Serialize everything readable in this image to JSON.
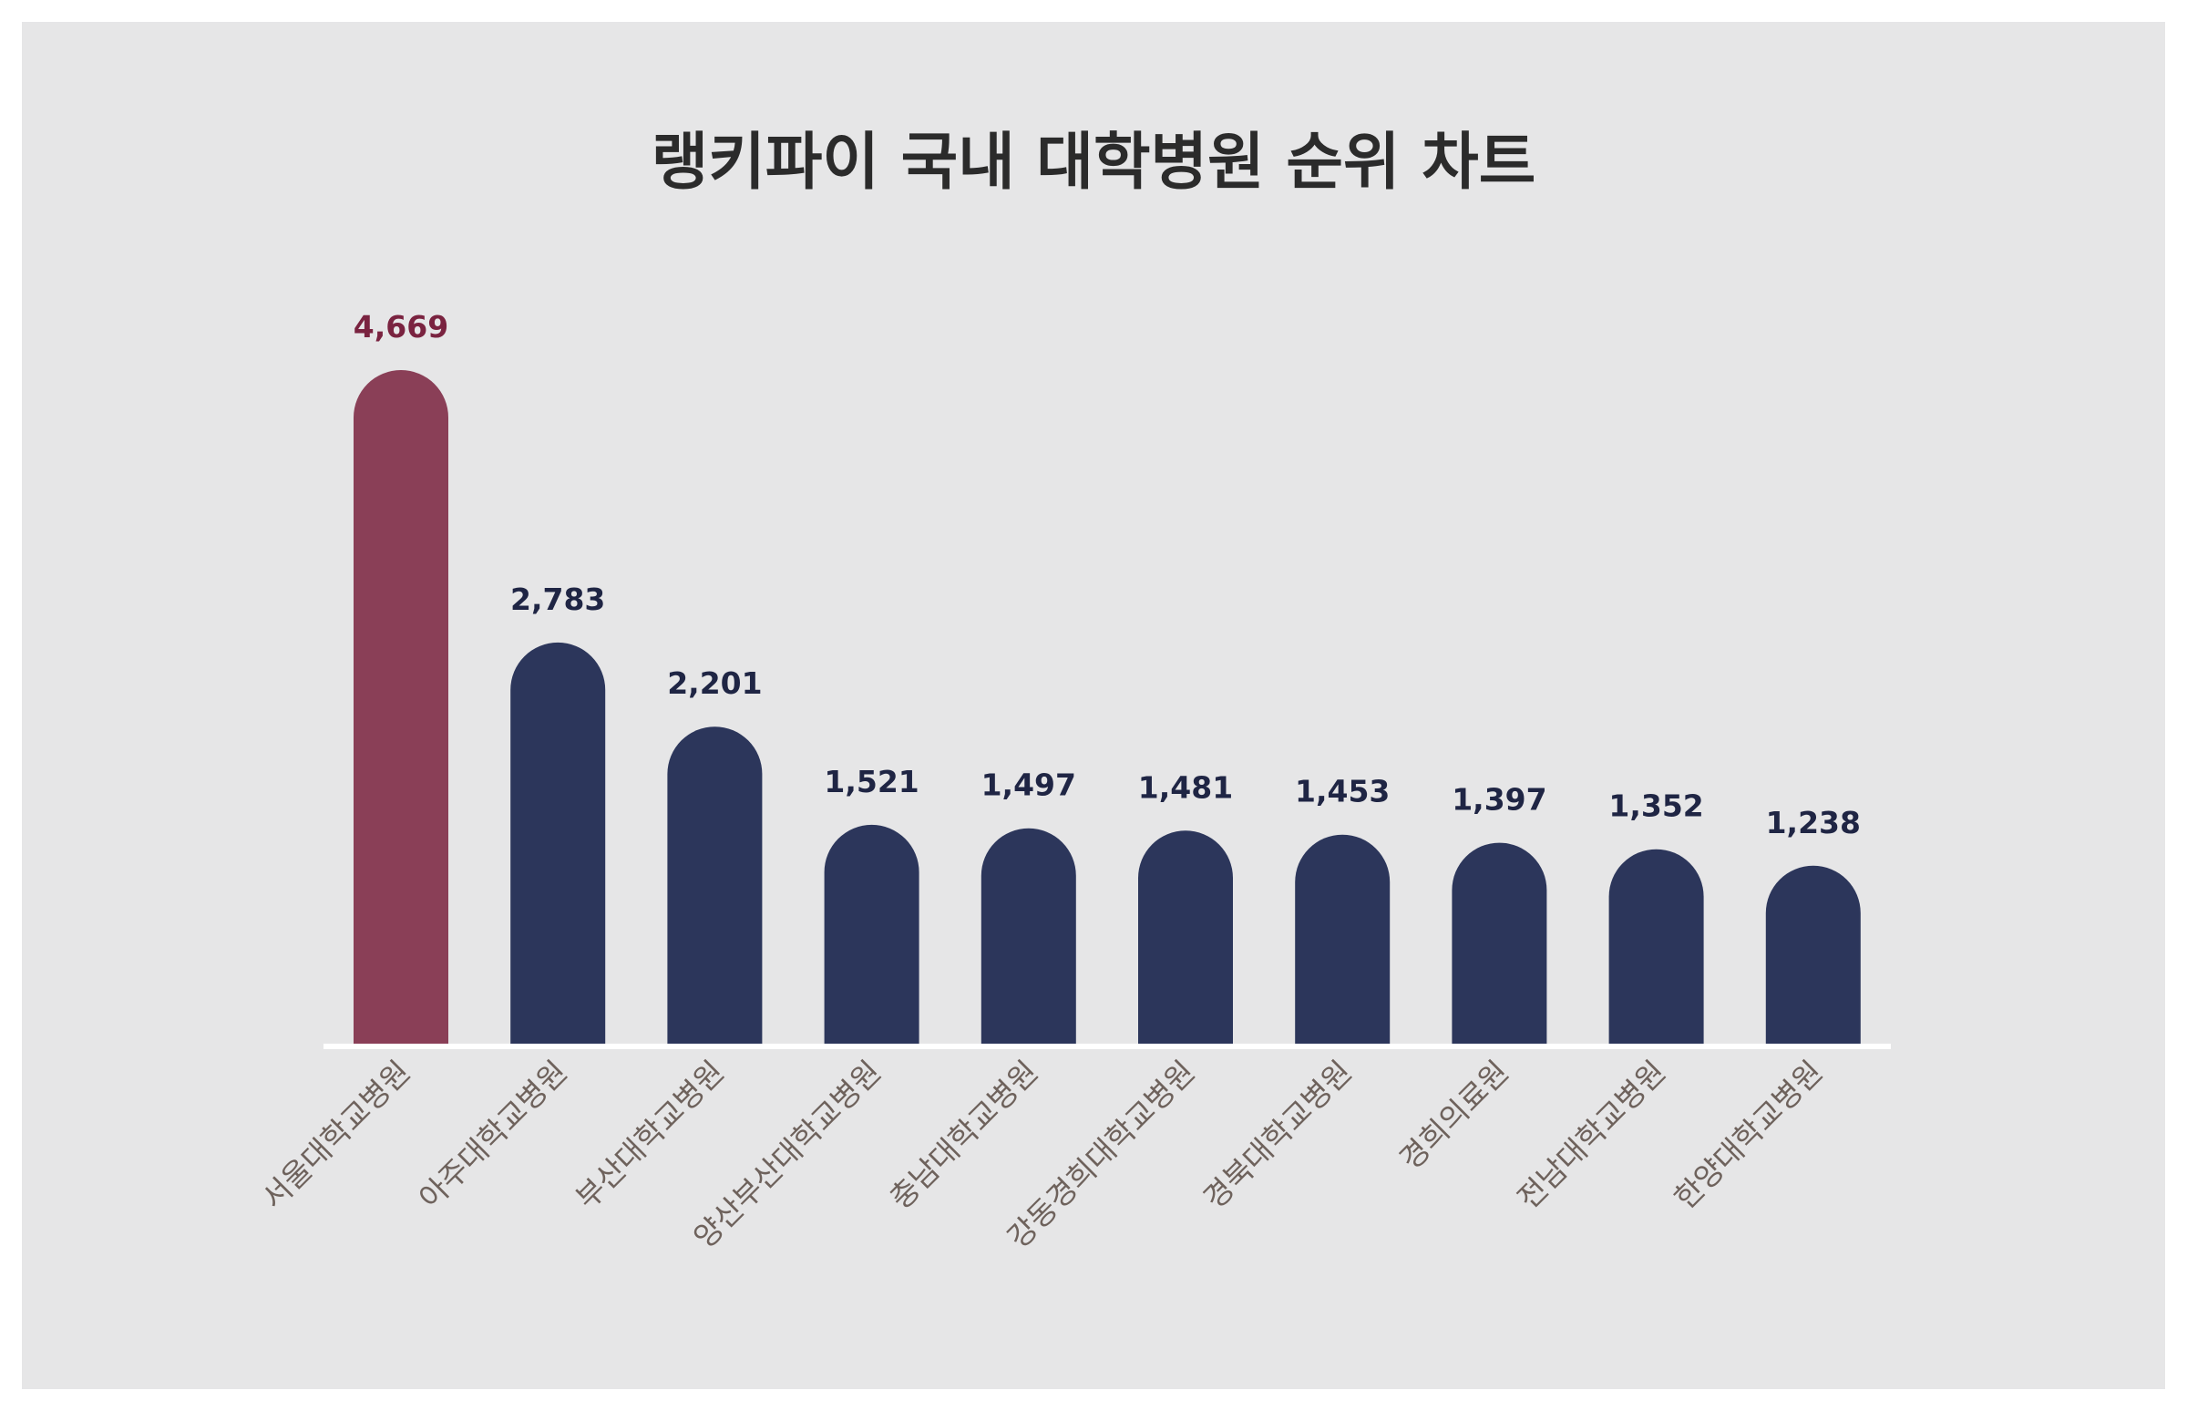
{
  "chart_data": {
    "type": "bar",
    "title": "랭키파이 국내 대학병원 순위 차트",
    "xlabel": "",
    "ylabel": "",
    "categories": [
      "서울대학교병원",
      "아주대학교병원",
      "부산대학교병원",
      "양산부산대학교병원",
      "충남대학교병원",
      "강동경희대학교병원",
      "경북대학교병원",
      "경희의료원",
      "전남대학교병원",
      "한양대학교병원"
    ],
    "values": [
      4669,
      2783,
      2201,
      1521,
      1497,
      1481,
      1453,
      1397,
      1352,
      1238
    ],
    "value_labels": [
      "4,669",
      "2,783",
      "2,201",
      "1,521",
      "1,497",
      "1,481",
      "1,453",
      "1,397",
      "1,352",
      "1,238"
    ],
    "highlight_index": 0,
    "ylim": [
      0,
      4669
    ],
    "grid": false,
    "legend": "none",
    "colors": {
      "highlight_bar": "#8a3f57",
      "bar": "#2c365b",
      "highlight_label": "#7a2340",
      "label": "#1f2544",
      "category_label": "#6e625c",
      "baseline": "#ffffff",
      "background": "#e6e6e7"
    }
  }
}
